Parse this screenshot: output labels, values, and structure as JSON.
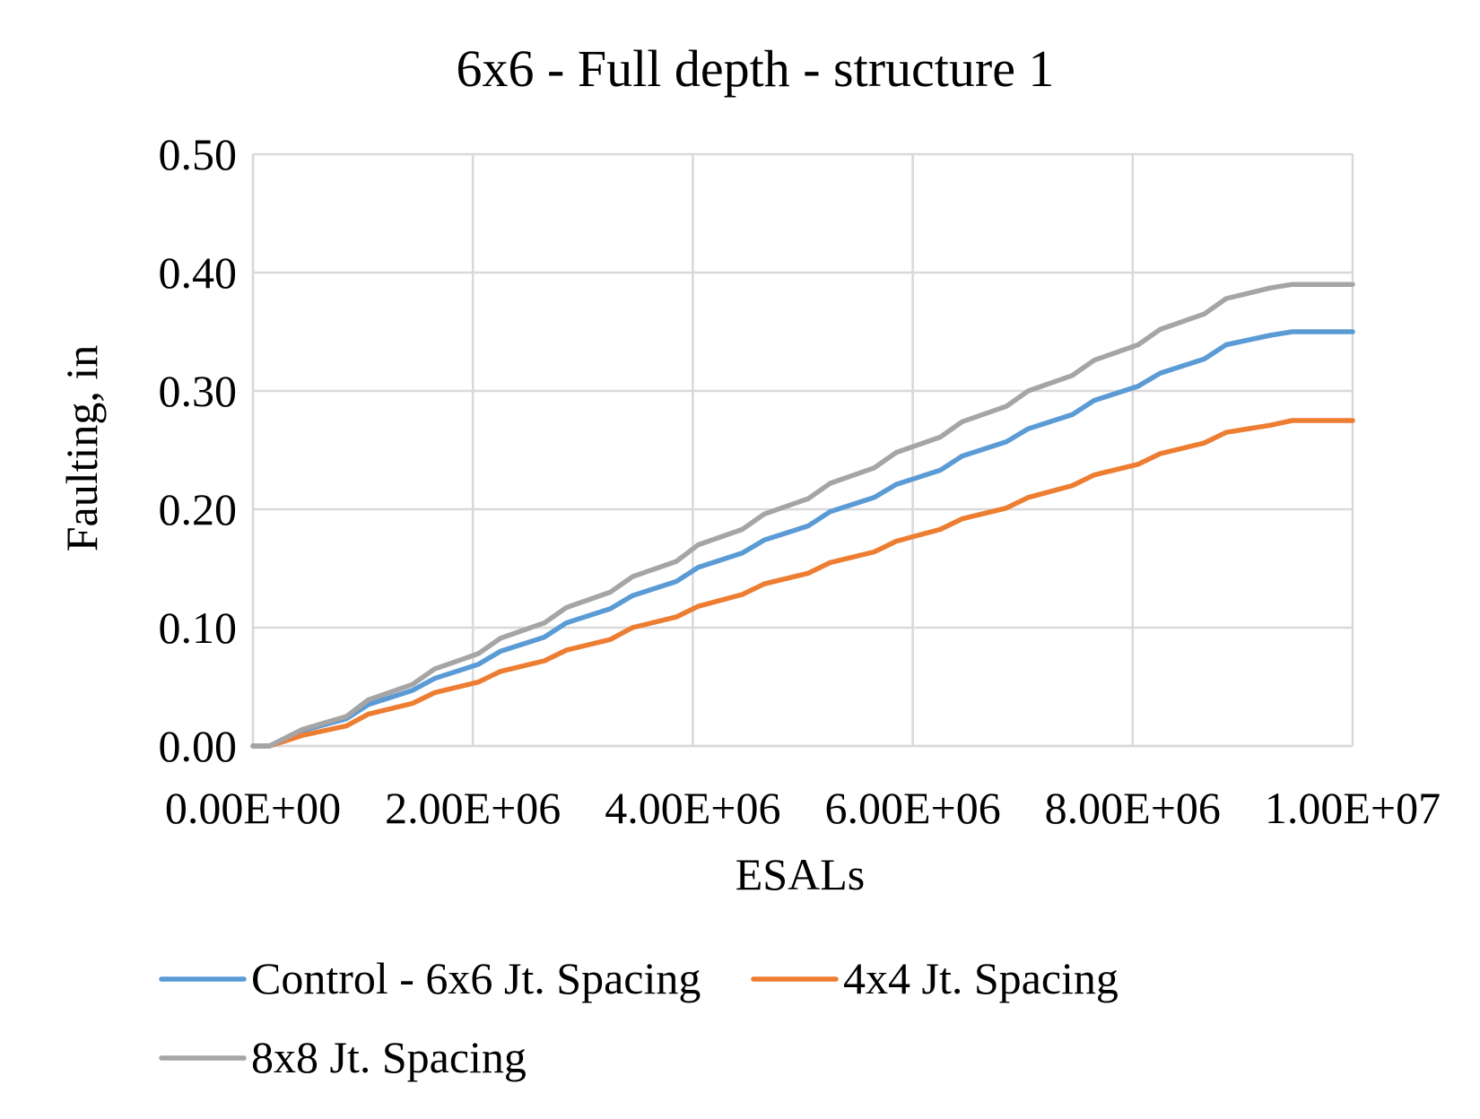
{
  "chart_data": {
    "type": "line",
    "title": "6x6 - Full depth - structure 1",
    "xlabel": "ESALs",
    "ylabel": "Faulting, in",
    "xlim": [
      0,
      10000000
    ],
    "ylim": [
      0,
      0.5
    ],
    "x_ticks": [
      0,
      2000000,
      4000000,
      6000000,
      8000000,
      10000000
    ],
    "x_tick_labels": [
      "0.00E+00",
      "2.00E+06",
      "4.00E+06",
      "6.00E+06",
      "8.00E+06",
      "1.00E+07"
    ],
    "y_ticks": [
      0,
      0.1,
      0.2,
      0.3,
      0.4,
      0.5
    ],
    "y_tick_labels": [
      "0.00",
      "0.10",
      "0.20",
      "0.30",
      "0.40",
      "0.50"
    ],
    "grid": true,
    "legend_position": "bottom",
    "x": [
      0,
      150000,
      450000,
      850000,
      1050000,
      1450000,
      1650000,
      2050000,
      2250000,
      2650000,
      2850000,
      3250000,
      3450000,
      3850000,
      4050000,
      4450000,
      4650000,
      5050000,
      5250000,
      5650000,
      5850000,
      6250000,
      6450000,
      6850000,
      7050000,
      7450000,
      7650000,
      8050000,
      8250000,
      8650000,
      8850000,
      9250000,
      9450000,
      9850000,
      10000000
    ],
    "series": [
      {
        "name": "Control - 6x6 Jt. Spacing",
        "color": "#5B9BD5",
        "values": [
          0,
          0,
          0.013,
          0.023,
          0.035,
          0.047,
          0.057,
          0.069,
          0.08,
          0.092,
          0.104,
          0.116,
          0.127,
          0.139,
          0.151,
          0.163,
          0.174,
          0.186,
          0.198,
          0.21,
          0.221,
          0.233,
          0.245,
          0.257,
          0.268,
          0.28,
          0.292,
          0.304,
          0.315,
          0.327,
          0.339,
          0.347,
          0.35,
          0.35,
          0.35
        ]
      },
      {
        "name": "4x4 Jt. Spacing",
        "color": "#ED7D31",
        "values": [
          0,
          0,
          0.009,
          0.017,
          0.027,
          0.036,
          0.045,
          0.054,
          0.063,
          0.072,
          0.081,
          0.09,
          0.1,
          0.109,
          0.118,
          0.128,
          0.137,
          0.146,
          0.155,
          0.164,
          0.173,
          0.183,
          0.192,
          0.201,
          0.21,
          0.22,
          0.229,
          0.238,
          0.247,
          0.256,
          0.265,
          0.271,
          0.275,
          0.275,
          0.275
        ]
      },
      {
        "name": "8x8 Jt. Spacing",
        "color": "#A5A5A5",
        "values": [
          0,
          0,
          0.014,
          0.025,
          0.039,
          0.052,
          0.065,
          0.078,
          0.091,
          0.104,
          0.117,
          0.13,
          0.143,
          0.156,
          0.17,
          0.183,
          0.196,
          0.209,
          0.222,
          0.235,
          0.248,
          0.261,
          0.274,
          0.287,
          0.3,
          0.313,
          0.326,
          0.339,
          0.352,
          0.365,
          0.378,
          0.387,
          0.39,
          0.39,
          0.39
        ]
      }
    ]
  }
}
